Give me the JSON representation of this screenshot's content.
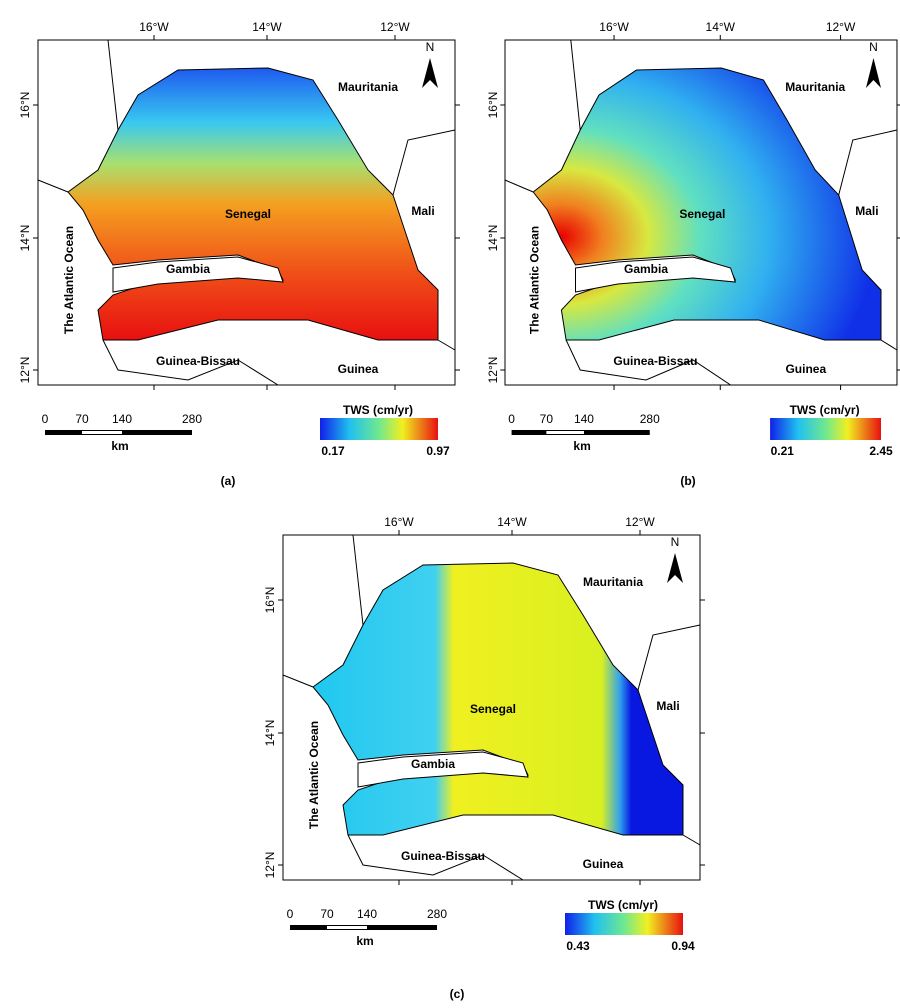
{
  "panels": [
    {
      "label": "(a)",
      "lon_ticks": [
        "16°W",
        "14°W",
        "12°W"
      ],
      "lat_ticks": [
        "16°N",
        "14°N",
        "12°N"
      ],
      "north": "N",
      "places": {
        "mauritania": "Mauritania",
        "mali": "Mali",
        "senegal": "Senegal",
        "gambia": "Gambia",
        "guinea_bissau": "Guinea-Bissau",
        "guinea": "Guinea",
        "ocean": "The Atlantic Ocean"
      },
      "scale": {
        "ticks": [
          0,
          70,
          140,
          280
        ],
        "unit": "km"
      },
      "legend": {
        "title": "TWS (cm/yr)",
        "min": 0.17,
        "max": 0.97
      }
    },
    {
      "label": "(b)",
      "lon_ticks": [
        "16°W",
        "14°W",
        "12°W"
      ],
      "lat_ticks": [
        "16°N",
        "14°N",
        "12°N"
      ],
      "north": "N",
      "places": {
        "mauritania": "Mauritania",
        "mali": "Mali",
        "senegal": "Senegal",
        "gambia": "Gambia",
        "guinea_bissau": "Guinea-Bissau",
        "guinea": "Guinea",
        "ocean": "The Atlantic Ocean"
      },
      "scale": {
        "ticks": [
          0,
          70,
          140,
          280
        ],
        "unit": "km"
      },
      "legend": {
        "title": "TWS (cm/yr)",
        "min": 0.21,
        "max": 2.45
      }
    },
    {
      "label": "(c)",
      "lon_ticks": [
        "16°W",
        "14°W",
        "12°W"
      ],
      "lat_ticks": [
        "16°N",
        "14°N",
        "12°N"
      ],
      "north": "N",
      "places": {
        "mauritania": "Mauritania",
        "mali": "Mali",
        "senegal": "Senegal",
        "gambia": "Gambia",
        "guinea_bissau": "Guinea-Bissau",
        "guinea": "Guinea",
        "ocean": "The Atlantic Ocean"
      },
      "scale": {
        "ticks": [
          0,
          70,
          140,
          280
        ],
        "unit": "km"
      },
      "legend": {
        "title": "TWS (cm/yr)",
        "min": 0.43,
        "max": 0.94
      }
    }
  ]
}
